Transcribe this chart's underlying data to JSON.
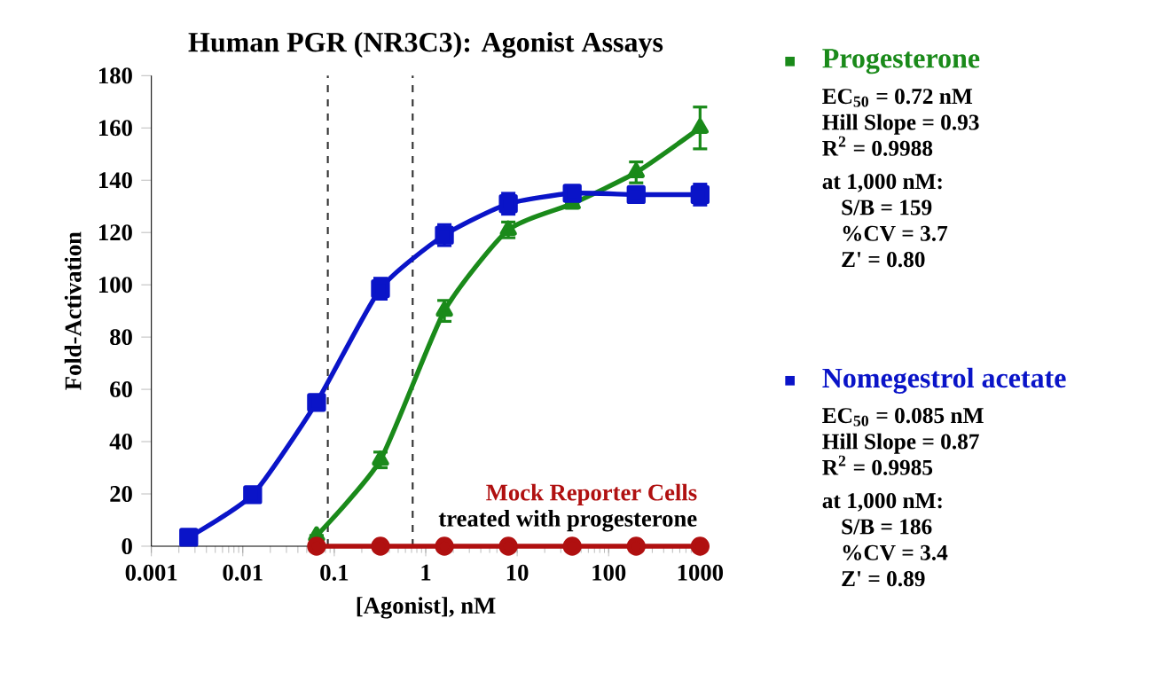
{
  "chart_data": {
    "type": "line",
    "title": "Human PGR (NR3C3): Agonist Assays",
    "xlabel": "[Agonist], nM",
    "ylabel": "Fold-Activation",
    "log": "x",
    "xlim": [
      0.001,
      1000
    ],
    "xticks": [
      0.001,
      0.01,
      0.1,
      1,
      10,
      100,
      1000
    ],
    "ylim": [
      0,
      180
    ],
    "yticks": [
      0,
      20,
      40,
      60,
      80,
      100,
      120,
      140,
      160,
      180
    ],
    "legend": "right",
    "line_style": "solid",
    "series": [
      {
        "name": "Progesterone",
        "color": "#1a8a1a",
        "marker": "triangle",
        "x": [
          0.064,
          0.32,
          1.6,
          8,
          40,
          200,
          1000
        ],
        "values": [
          4,
          33,
          90,
          121,
          131,
          143,
          160
        ],
        "errors": [
          null,
          3,
          4,
          3,
          null,
          4,
          8
        ]
      },
      {
        "name": "Nomegestrol acetate",
        "color": "#0a14c8",
        "marker": "square",
        "x": [
          0.00256,
          0.0128,
          0.064,
          0.32,
          1.6,
          8,
          40,
          200,
          1000
        ],
        "values": [
          3.4,
          19.7,
          55,
          98.5,
          119,
          131,
          135,
          134.5,
          134.5
        ],
        "errors": [
          null,
          null,
          2,
          4,
          4,
          4,
          2,
          3,
          4
        ]
      },
      {
        "name": "Mock Reporter Cells",
        "color": "#b01010",
        "marker": "circle",
        "x": [
          0.064,
          0.32,
          1.6,
          8,
          40,
          200,
          1000
        ],
        "values": [
          0,
          0,
          0,
          0,
          0,
          0,
          0
        ]
      }
    ],
    "ref_lines": [
      {
        "axis": "x",
        "value": 0.085,
        "color": "#333333",
        "line_style": "dashed"
      },
      {
        "axis": "x",
        "value": 0.72,
        "color": "#333333",
        "line_style": "dashed"
      }
    ],
    "annotations": [
      "EC$_{50}$ = 0.72 nM",
      "Hill Slope = 0.93",
      "R$^{2}$ = 0.9988",
      "at 1,000 nM:",
      "S/B = 159",
      "%CV = 3.7",
      "Z' = 0.80",
      "EC$_{50}$ = 0.085 nM",
      "Hill Slope = 0.87",
      "R$^{2}$ = 0.9985",
      "at 1,000 nM:",
      "S/B = 186",
      "%CV = 3.4",
      "Z' = 0.89",
      "treated with progesterone"
    ]
  }
}
